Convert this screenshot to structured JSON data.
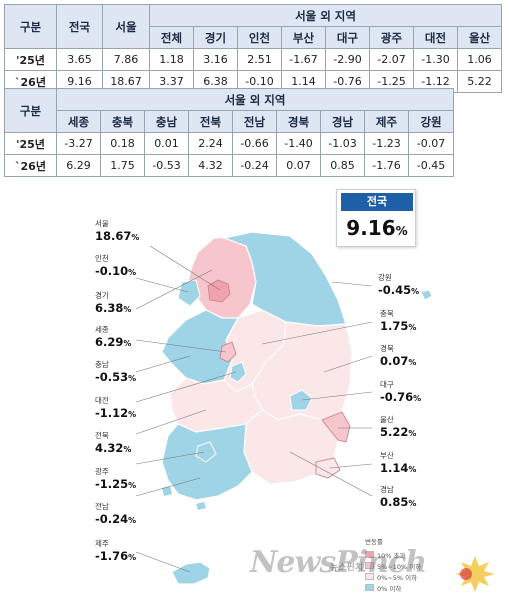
{
  "table1": {
    "gubun": "구분",
    "national": "전국",
    "seoul": "서울",
    "outside_seoul": "서울 외 지역",
    "columns": [
      "전체",
      "경기",
      "인천",
      "부산",
      "대구",
      "광주",
      "대전",
      "울산"
    ],
    "rows": [
      {
        "label": "'25년",
        "national": "3.65",
        "seoul": "7.86",
        "values": [
          "1.18",
          "3.16",
          "2.51",
          "-1.67",
          "-2.90",
          "-2.07",
          "-1.30",
          "1.06"
        ]
      },
      {
        "label": "`26년",
        "national": "9.16",
        "seoul": "18.67",
        "values": [
          "3.37",
          "6.38",
          "-0.10",
          "1.14",
          "-0.76",
          "-1.25",
          "-1.12",
          "5.22"
        ]
      }
    ]
  },
  "table2": {
    "gubun": "구분",
    "outside_seoul": "서울 외 지역",
    "columns": [
      "세종",
      "충북",
      "충남",
      "전북",
      "전남",
      "경북",
      "경남",
      "제주",
      "강원"
    ],
    "rows": [
      {
        "label": "'25년",
        "values": [
          "-3.27",
          "0.18",
          "0.01",
          "2.24",
          "-0.66",
          "-1.40",
          "-1.03",
          "-1.23",
          "-0.07"
        ]
      },
      {
        "label": "`26년",
        "values": [
          "6.29",
          "1.75",
          "-0.53",
          "4.32",
          "-0.24",
          "0.07",
          "0.85",
          "-1.76",
          "-0.45"
        ]
      }
    ]
  },
  "national_box": {
    "title": "전국",
    "value": "9.16",
    "unit": "%"
  },
  "map_labels": {
    "left": [
      {
        "name": "서울",
        "value": "18.67",
        "unit": "%"
      },
      {
        "name": "인천",
        "value": "-0.10",
        "unit": "%"
      },
      {
        "name": "경기",
        "value": "6.38",
        "unit": "%"
      },
      {
        "name": "세종",
        "value": "6.29",
        "unit": "%"
      },
      {
        "name": "충남",
        "value": "-0.53",
        "unit": "%"
      },
      {
        "name": "대전",
        "value": "-1.12",
        "unit": "%"
      },
      {
        "name": "전북",
        "value": "4.32",
        "unit": "%"
      },
      {
        "name": "광주",
        "value": "-1.25",
        "unit": "%"
      },
      {
        "name": "전남",
        "value": "-0.24",
        "unit": "%"
      },
      {
        "name": "제주",
        "value": "-1.76",
        "unit": "%"
      }
    ],
    "right": [
      {
        "name": "강원",
        "value": "-0.45",
        "unit": "%"
      },
      {
        "name": "충북",
        "value": "1.75",
        "unit": "%"
      },
      {
        "name": "경북",
        "value": "0.07",
        "unit": "%"
      },
      {
        "name": "대구",
        "value": "-0.76",
        "unit": "%"
      },
      {
        "name": "울산",
        "value": "5.22",
        "unit": "%"
      },
      {
        "name": "부산",
        "value": "1.14",
        "unit": "%"
      },
      {
        "name": "경남",
        "value": "0.85",
        "unit": "%"
      }
    ]
  },
  "legend": {
    "title": "변동률",
    "items": [
      {
        "label": "10% 초과",
        "color": "#f0a3ad"
      },
      {
        "label": "5%~10% 이하",
        "color": "#f6c6cc"
      },
      {
        "label": "0%~5% 이하",
        "color": "#fbe6e8"
      },
      {
        "label": "0% 이하",
        "color": "#9fd3e6"
      }
    ]
  },
  "colors": {
    "over10": "#f0a3ad",
    "5to10": "#f6c6cc",
    "0to5": "#fbe6e8",
    "under0": "#9fd3e6",
    "header_bg": "#dde6f2",
    "national_blue": "#1f5fa8"
  },
  "watermark": {
    "text": "NewsPinch",
    "sub": "뉴스핀치"
  },
  "chart_data": {
    "type": "table",
    "columns": [
      "전국",
      "서울",
      "전체(서울 외)",
      "경기",
      "인천",
      "부산",
      "대구",
      "광주",
      "대전",
      "울산",
      "세종",
      "충북",
      "충남",
      "전북",
      "전남",
      "경북",
      "경남",
      "제주",
      "강원"
    ],
    "rows": [
      {
        "label": "'25년",
        "values": [
          3.65,
          7.86,
          1.18,
          3.16,
          2.51,
          -1.67,
          -2.9,
          -2.07,
          -1.3,
          1.06,
          -3.27,
          0.18,
          0.01,
          2.24,
          -0.66,
          -1.4,
          -1.03,
          -1.23,
          -0.07
        ]
      },
      {
        "label": "`26년",
        "values": [
          9.16,
          18.67,
          3.37,
          6.38,
          -0.1,
          1.14,
          -0.76,
          -1.25,
          -1.12,
          5.22,
          6.29,
          1.75,
          -0.53,
          4.32,
          -0.24,
          0.07,
          0.85,
          -1.76,
          -0.45
        ]
      }
    ]
  }
}
